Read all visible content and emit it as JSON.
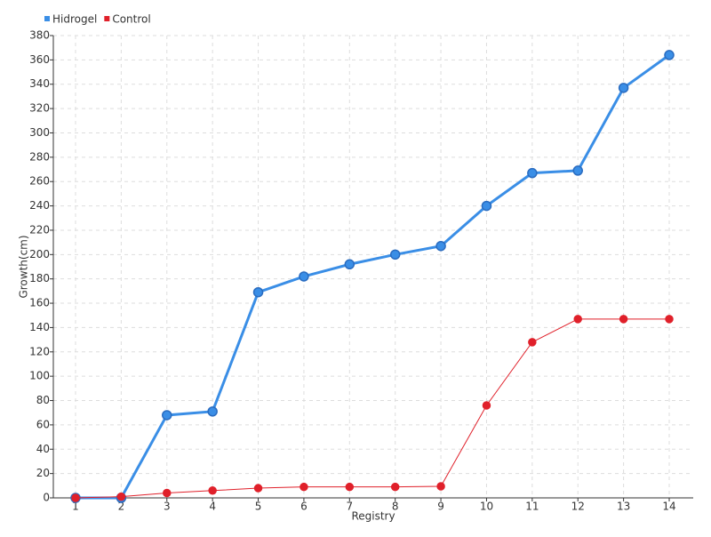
{
  "chart_data": {
    "type": "line",
    "x_label": "Registry",
    "y_label": "Growth(cm)",
    "categories": [
      "1",
      "2",
      "3",
      "4",
      "5",
      "6",
      "7",
      "8",
      "9",
      "10",
      "11",
      "12",
      "13",
      "14"
    ],
    "series": [
      {
        "name": "Hidrogel",
        "color": "#3a8ee6",
        "values": [
          0,
          0,
          68,
          71,
          169,
          182,
          192,
          200,
          207,
          240,
          267,
          269,
          337,
          364
        ]
      },
      {
        "name": "Control",
        "color": "#e0202a",
        "values": [
          0,
          1,
          4,
          6,
          8,
          9,
          9,
          9,
          9.5,
          76,
          128,
          147,
          147,
          147
        ]
      }
    ],
    "ylim": [
      0,
      380
    ],
    "yticks": [
      0,
      20,
      40,
      60,
      80,
      100,
      120,
      140,
      160,
      180,
      200,
      220,
      240,
      260,
      280,
      300,
      320,
      340,
      360,
      380
    ],
    "grid": true,
    "legend": "top-left"
  }
}
